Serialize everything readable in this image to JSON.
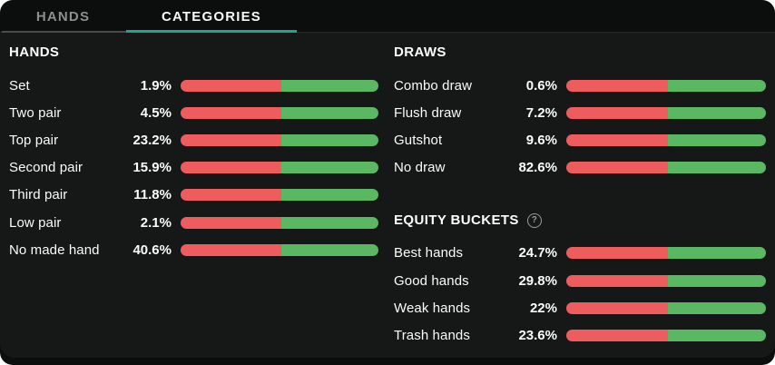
{
  "tabs": [
    {
      "label": "HANDS",
      "active": false
    },
    {
      "label": "CATEGORIES",
      "active": true
    }
  ],
  "sections": [
    {
      "title": "HANDS",
      "rows": [
        {
          "label": "Set",
          "value": "1.9%"
        },
        {
          "label": "Two pair",
          "value": "4.5%"
        },
        {
          "label": "Top pair",
          "value": "23.2%"
        },
        {
          "label": "Second pair",
          "value": "15.9%"
        },
        {
          "label": "Third pair",
          "value": "11.8%"
        },
        {
          "label": "Low pair",
          "value": "2.1%"
        },
        {
          "label": "No made hand",
          "value": "40.6%"
        }
      ]
    },
    {
      "title": "DRAWS",
      "rows": [
        {
          "label": "Combo draw",
          "value": "0.6%"
        },
        {
          "label": "Flush draw",
          "value": "7.2%"
        },
        {
          "label": "Gutshot",
          "value": "9.6%"
        },
        {
          "label": "No draw",
          "value": "82.6%"
        }
      ]
    },
    {
      "title": "EQUITY BUCKETS",
      "help_icon": "question-circle-icon",
      "help_glyph": "?",
      "rows": [
        {
          "label": "Best hands",
          "value": "24.7%"
        },
        {
          "label": "Good hands",
          "value": "29.8%"
        },
        {
          "label": "Weak hands",
          "value": "22%"
        },
        {
          "label": "Trash hands",
          "value": "23.6%"
        }
      ]
    }
  ],
  "bar": {
    "red": "#ee5c5e",
    "green": "#5ab863",
    "red_fraction_pct": 51
  },
  "colors": {
    "page_background": "#ffffff",
    "app_background": "#0c0d0d",
    "panel_background": "#161717",
    "active_tab_underline": "#21a493",
    "inactive_tab_underline": "#4a4c4c",
    "inactive_tab_text": "#8c8e8f",
    "text": "#fafafa",
    "help_icon": "#9a9a9a"
  }
}
